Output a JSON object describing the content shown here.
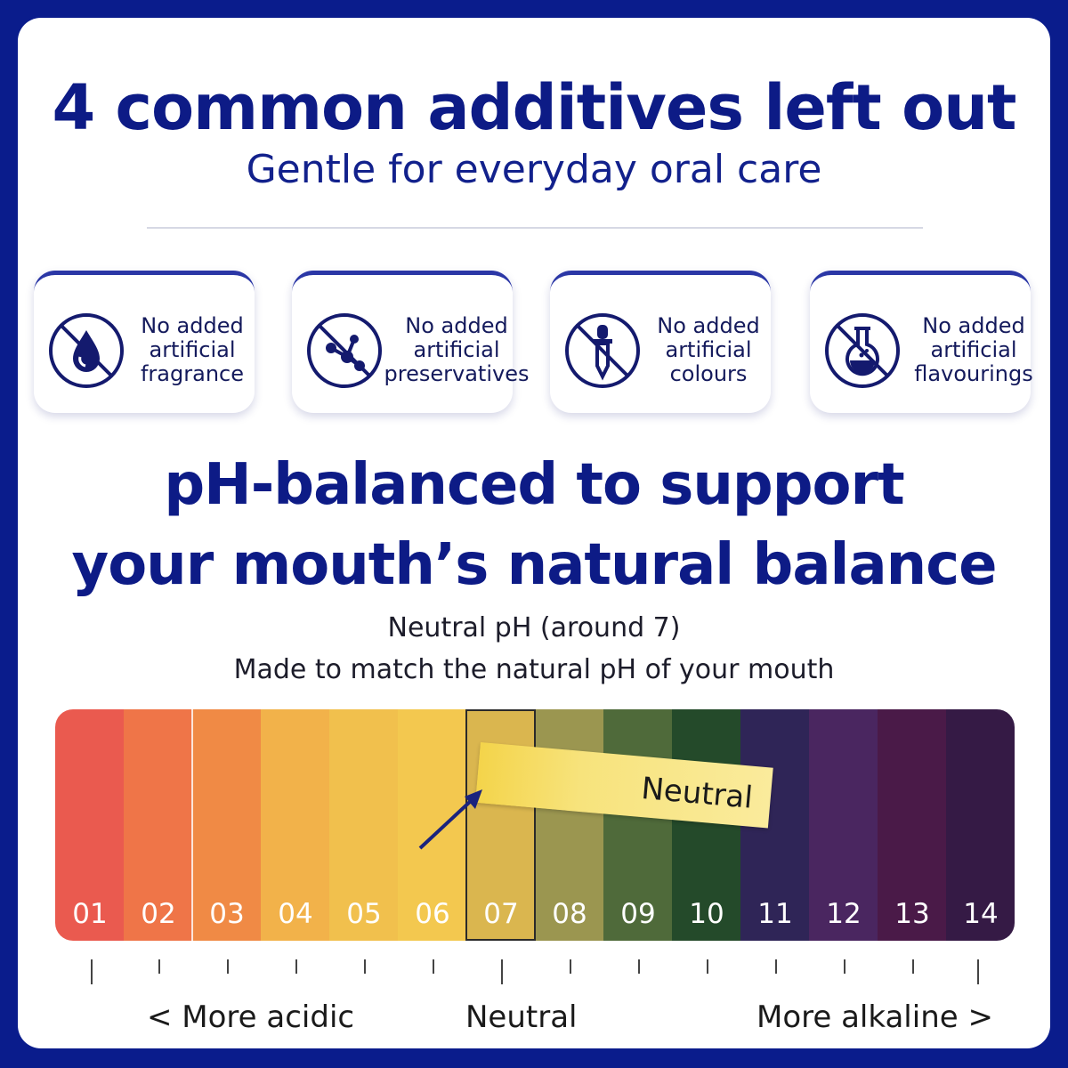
{
  "title": "4 common additives left out",
  "subtitle": "Gentle for everyday oral care",
  "badges": [
    {
      "line1": "No added",
      "line2": "artificial",
      "line3": "fragrance",
      "icon": "no-fragrance-drop-icon"
    },
    {
      "line1": "No added",
      "line2": "artificial",
      "line3": "preservatives",
      "icon": "no-preservatives-molecule-icon"
    },
    {
      "line1": "No added",
      "line2": "artificial",
      "line3": "colours",
      "icon": "no-colours-dropper-icon"
    },
    {
      "line1": "No added",
      "line2": "artificial",
      "line3": "flavourings",
      "icon": "no-flavourings-flask-icon"
    }
  ],
  "ph_title_line1": "pH-balanced to support",
  "ph_title_line2": "your mouth’s natural balance",
  "ph_sub1": "Neutral pH (around 7)",
  "ph_sub2": "Made to match the natural pH of your mouth",
  "scale": {
    "highlighted_level": "07",
    "tag_label": "Neutral",
    "segments": [
      {
        "label": "01",
        "color": "#ea5a4f"
      },
      {
        "label": "02",
        "color": "#ef7548"
      },
      {
        "label": "03",
        "color": "#f08a45"
      },
      {
        "label": "04",
        "color": "#f2b24a"
      },
      {
        "label": "05",
        "color": "#f1c04d"
      },
      {
        "label": "06",
        "color": "#f3c84f"
      },
      {
        "label": "07",
        "color": "#dab64f"
      },
      {
        "label": "08",
        "color": "#9b9650"
      },
      {
        "label": "09",
        "color": "#4f6a3a"
      },
      {
        "label": "10",
        "color": "#244a2a"
      },
      {
        "label": "11",
        "color": "#2f2557"
      },
      {
        "label": "12",
        "color": "#4a2660"
      },
      {
        "label": "13",
        "color": "#4a1a48"
      },
      {
        "label": "14",
        "color": "#351a45"
      }
    ]
  },
  "axis": {
    "left": "< More acidic",
    "center": "Neutral",
    "right": "More alkaline >"
  }
}
